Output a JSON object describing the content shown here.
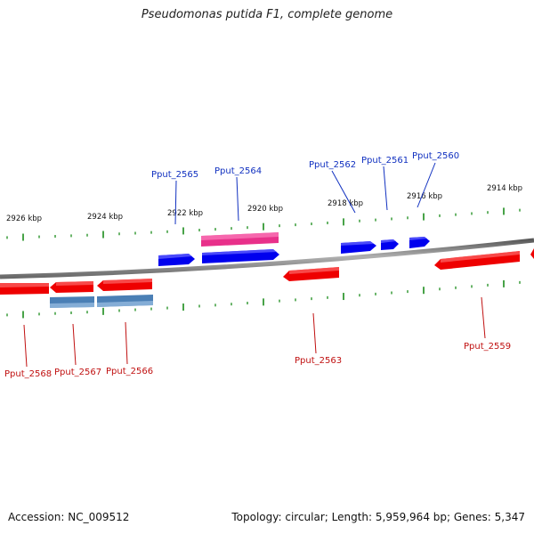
{
  "title": "Pseudomonas putida F1, complete genome",
  "footer": {
    "accession": "Accession: NC_009512",
    "summary": "Topology: circular; Length: 5,959,964 bp; Genes: 5,347"
  },
  "colors": {
    "backbone": "#808080",
    "forward_gene": "#0000ee",
    "reverse_gene": "#ee0000",
    "forward_pseudo": "#e8308a",
    "reverse_pseudo": "#4a7fb5",
    "tick": "#1a8c1a",
    "forward_label": "#1030c0",
    "reverse_label": "#c01010"
  },
  "tick_labels": [
    "2926 kbp",
    "2924 kbp",
    "2922 kbp",
    "2920 kbp",
    "2918 kbp",
    "2916 kbp",
    "2914 kbp"
  ],
  "forward_genes": [
    "Pput_2565",
    "Pput_2564",
    "Pput_2562",
    "Pput_2561",
    "Pput_2560"
  ],
  "reverse_genes": [
    "Pput_2568",
    "Pput_2567",
    "Pput_2566",
    "Pput_2563",
    "Pput_2559"
  ]
}
